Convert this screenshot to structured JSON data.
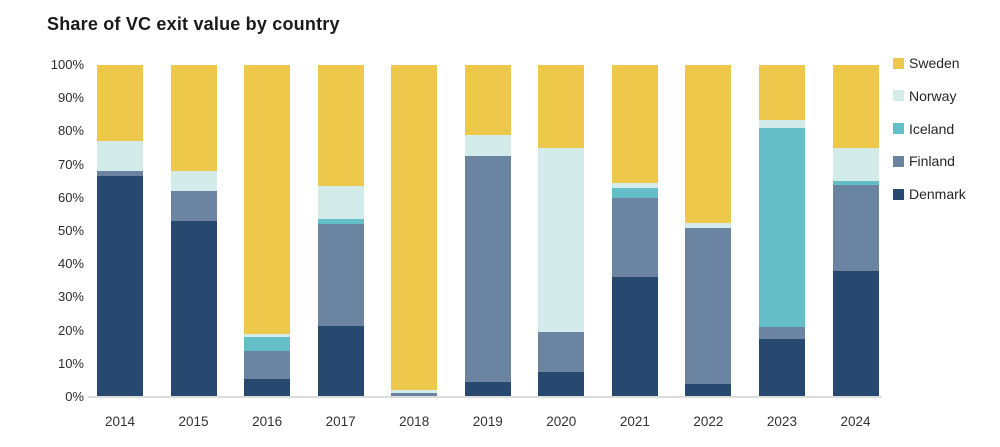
{
  "title": "Share of VC exit value by country",
  "colors": {
    "sweden": "#edc84a",
    "norway": "#d3ece9",
    "iceland": "#64bec8",
    "finland": "#6a84a1",
    "denmark": "#27496f",
    "baseline": "#dbdbdb",
    "title_text": "#1a1a1a",
    "axis_text": "#333333"
  },
  "chart_data": {
    "type": "bar",
    "stacked": true,
    "unit": "percent",
    "title": "Share of VC exit value by country",
    "xlabel": "",
    "ylabel": "",
    "ylim": [
      0,
      100
    ],
    "y_ticks": [
      "0%",
      "10%",
      "20%",
      "30%",
      "40%",
      "50%",
      "60%",
      "70%",
      "80%",
      "90%",
      "100%"
    ],
    "grid": false,
    "legend_position": "right",
    "legend_order_top_to_bottom": [
      "Sweden",
      "Norway",
      "Iceland",
      "Finland",
      "Denmark"
    ],
    "categories": [
      "2014",
      "2015",
      "2016",
      "2017",
      "2018",
      "2019",
      "2020",
      "2021",
      "2022",
      "2023",
      "2024"
    ],
    "series": [
      {
        "name": "Denmark",
        "color_key": "denmark",
        "values": [
          66.5,
          53,
          5.5,
          21.5,
          0,
          4.5,
          7.5,
          36,
          4,
          17.5,
          38
        ]
      },
      {
        "name": "Finland",
        "color_key": "finland",
        "values": [
          1.5,
          9,
          8.5,
          30.5,
          1.2,
          68,
          12,
          24,
          47,
          3.5,
          26
        ]
      },
      {
        "name": "Iceland",
        "color_key": "iceland",
        "values": [
          0,
          0,
          4,
          1.5,
          0,
          0,
          0,
          3,
          0,
          60,
          1
        ]
      },
      {
        "name": "Norway",
        "color_key": "norway",
        "values": [
          9,
          6,
          1,
          10,
          0.8,
          6.5,
          55.5,
          1.5,
          1.5,
          2.5,
          10
        ]
      },
      {
        "name": "Sweden",
        "color_key": "sweden",
        "values": [
          23,
          32,
          81,
          36.5,
          98,
          21,
          25,
          35.5,
          47.5,
          16.5,
          25
        ]
      }
    ]
  }
}
